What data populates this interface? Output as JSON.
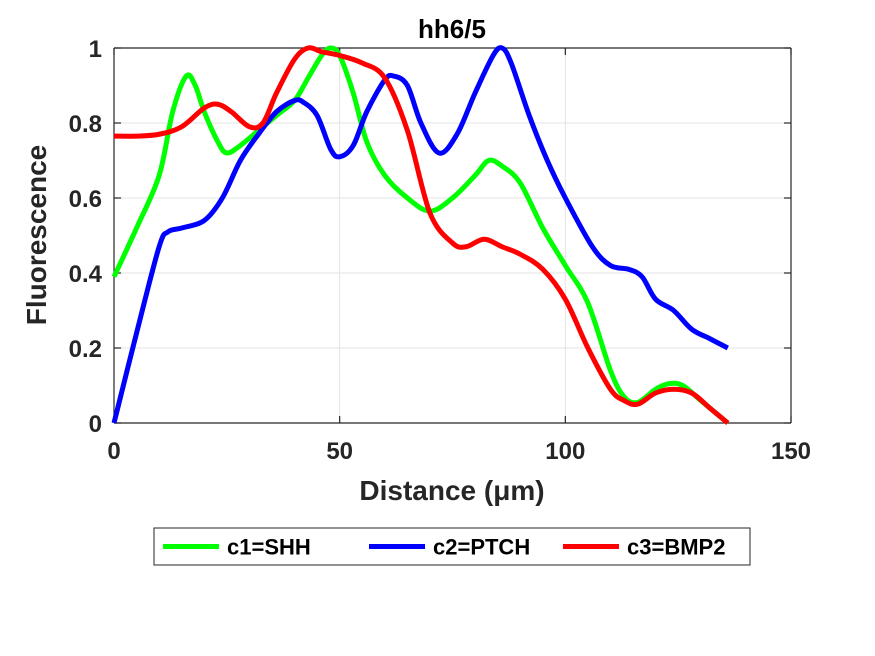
{
  "chart_data": {
    "type": "line",
    "title": "hh6/5",
    "xlabel": "Distance  (μm)",
    "ylabel": "Fluorescence",
    "xlim": [
      0,
      150
    ],
    "ylim": [
      0,
      1
    ],
    "xticks": [
      0,
      50,
      100,
      150
    ],
    "yticks": [
      0,
      0.2,
      0.4,
      0.6,
      0.8,
      1
    ],
    "xtick_labels": [
      "0",
      "50",
      "100",
      "150"
    ],
    "ytick_labels": [
      "0",
      "0.2",
      "0.4",
      "0.6",
      "0.8",
      "1"
    ],
    "grid": true,
    "legend_position": "bottom-outside",
    "series": [
      {
        "name": "c1=SHH",
        "color": "#00ff00",
        "x": [
          0,
          5,
          10,
          13,
          16,
          18,
          20,
          23,
          25,
          28,
          32,
          36,
          40,
          43,
          46,
          48,
          50,
          53,
          56,
          60,
          65,
          70,
          75,
          80,
          83,
          86,
          90,
          95,
          100,
          105,
          110,
          113,
          116,
          120,
          123,
          126,
          130,
          136
        ],
        "y": [
          0.39,
          0.52,
          0.66,
          0.83,
          0.925,
          0.9,
          0.83,
          0.75,
          0.72,
          0.74,
          0.78,
          0.82,
          0.86,
          0.92,
          0.98,
          1.0,
          0.98,
          0.88,
          0.75,
          0.66,
          0.6,
          0.565,
          0.6,
          0.66,
          0.7,
          0.685,
          0.64,
          0.52,
          0.42,
          0.32,
          0.14,
          0.07,
          0.055,
          0.09,
          0.105,
          0.1,
          0.06,
          0.0
        ]
      },
      {
        "name": "c2=PTCH",
        "color": "#0000ff",
        "x": [
          0,
          5,
          10,
          12,
          15,
          20,
          24,
          28,
          32,
          36,
          40,
          42,
          45,
          48,
          50,
          53,
          56,
          60,
          62,
          65,
          68,
          72,
          76,
          80,
          84,
          86,
          88,
          92,
          96,
          100,
          106,
          110,
          114,
          117,
          120,
          124,
          128,
          132,
          136
        ],
        "y": [
          0.0,
          0.24,
          0.47,
          0.51,
          0.52,
          0.54,
          0.6,
          0.7,
          0.77,
          0.83,
          0.86,
          0.855,
          0.82,
          0.73,
          0.71,
          0.74,
          0.83,
          0.915,
          0.925,
          0.9,
          0.8,
          0.72,
          0.77,
          0.88,
          0.98,
          1.0,
          0.96,
          0.82,
          0.7,
          0.6,
          0.47,
          0.42,
          0.41,
          0.39,
          0.33,
          0.3,
          0.25,
          0.225,
          0.2
        ]
      },
      {
        "name": "c3=BMP2",
        "color": "#ff0000",
        "x": [
          0,
          5,
          10,
          15,
          20,
          23,
          26,
          30,
          33,
          36,
          40,
          43,
          46,
          50,
          55,
          60,
          65,
          70,
          75,
          78,
          82,
          86,
          90,
          95,
          100,
          105,
          110,
          113,
          116,
          120,
          124,
          128,
          132,
          136
        ],
        "y": [
          0.765,
          0.765,
          0.77,
          0.79,
          0.84,
          0.85,
          0.83,
          0.79,
          0.8,
          0.88,
          0.97,
          1.0,
          0.99,
          0.98,
          0.96,
          0.92,
          0.78,
          0.56,
          0.48,
          0.47,
          0.49,
          0.47,
          0.45,
          0.41,
          0.33,
          0.2,
          0.09,
          0.06,
          0.05,
          0.08,
          0.09,
          0.08,
          0.04,
          0.0
        ]
      }
    ]
  }
}
